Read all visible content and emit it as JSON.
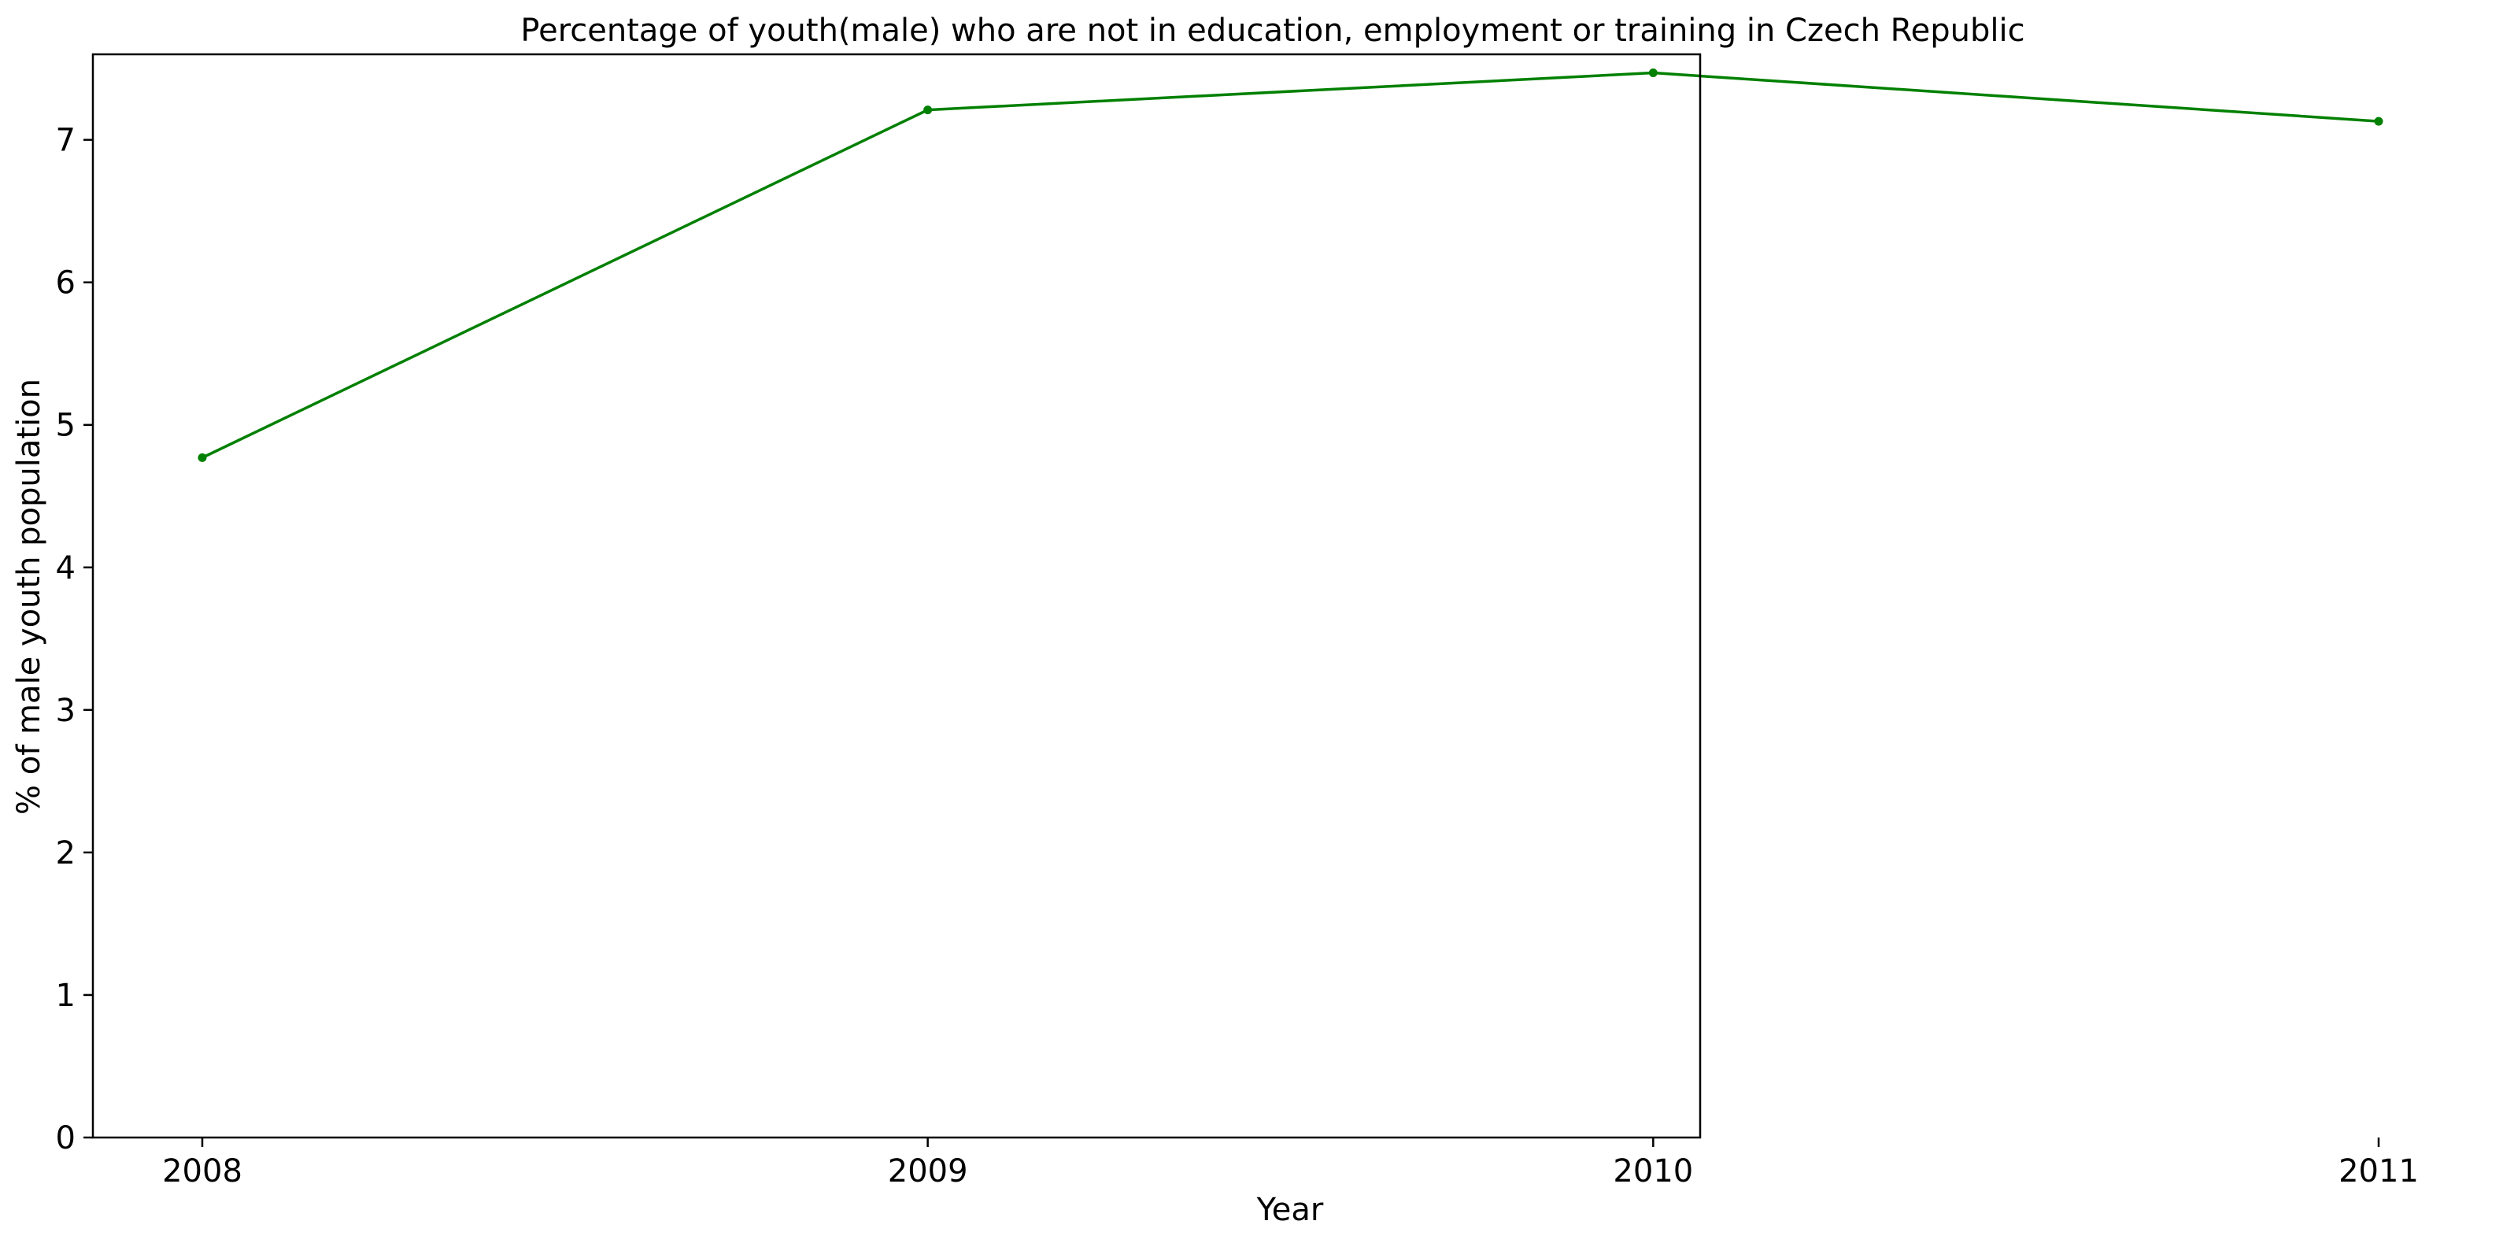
{
  "chart_data": {
    "type": "line",
    "title": "Percentage of youth(male) who are not in education, employment or training in Czech Republic",
    "xlabel": "Year",
    "ylabel": "% of male youth population",
    "x": [
      "2008",
      "2009",
      "2010",
      "2011"
    ],
    "series": [
      {
        "values": [
          4.77,
          7.21,
          7.47,
          7.13
        ],
        "color": "#008000"
      }
    ],
    "ylim": [
      0,
      7.6
    ],
    "yticks": [
      0,
      1,
      2,
      3,
      4,
      5,
      6,
      7
    ],
    "grid": false,
    "legend": "none"
  }
}
